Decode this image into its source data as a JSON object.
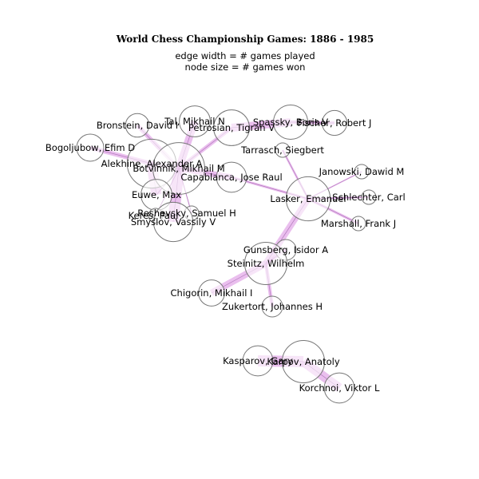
{
  "figure": {
    "title": "World Chess Championship Games: 1886 - 1985",
    "subtitle_lines": [
      "edge width = # games played",
      "node size = # games won"
    ]
  },
  "colors": {
    "edge": "#d98be0",
    "node_fill": "#ffffff",
    "node_stroke": "#777777",
    "text": "#000000"
  },
  "nodes": [
    {
      "id": "tal",
      "label": "Tal, Mikhail N",
      "games_won": 13
    },
    {
      "id": "bronstein",
      "label": "Bronstein, David I",
      "games_won": 6
    },
    {
      "id": "petrosian",
      "label": "Petrosian, Tigran V",
      "games_won": 19
    },
    {
      "id": "spassky",
      "label": "Spassky, Boris V",
      "games_won": 17
    },
    {
      "id": "fischer",
      "label": "Fischer, Robert J",
      "games_won": 7
    },
    {
      "id": "bogoljubow",
      "label": "Bogoljubow, Efim D",
      "games_won": 9
    },
    {
      "id": "tarrasch",
      "label": "Tarrasch, Siegbert",
      "games_won": 1
    },
    {
      "id": "alekhine",
      "label": "Alekhine, Alexander A",
      "games_won": 41
    },
    {
      "id": "botvinnik",
      "label": "Botvinnik, Mikhail M",
      "games_won": 47
    },
    {
      "id": "capablanca",
      "label": "Capablanca, Jose Raul",
      "games_won": 12
    },
    {
      "id": "janowski",
      "label": "Janowski, Dawid M",
      "games_won": 1
    },
    {
      "id": "euwe",
      "label": "Euwe, Max",
      "games_won": 13
    },
    {
      "id": "lasker",
      "label": "Lasker, Emanuel",
      "games_won": 32
    },
    {
      "id": "schlechter",
      "label": "Schlechter, Carl",
      "games_won": 1
    },
    {
      "id": "reshevsky",
      "label": "Reshevsky, Samuel H",
      "games_won": 1
    },
    {
      "id": "keres",
      "label": "Keres, Paul",
      "games_won": 1
    },
    {
      "id": "smyslov",
      "label": "Smyslov, Vassily V",
      "games_won": 24
    },
    {
      "id": "marshall",
      "label": "Marshall, Frank J",
      "games_won": 1
    },
    {
      "id": "gunsberg",
      "label": "Gunsberg, Isidor A",
      "games_won": 4
    },
    {
      "id": "steinitz",
      "label": "Steinitz, Wilhelm",
      "games_won": 29
    },
    {
      "id": "chigorin",
      "label": "Chigorin, Mikhail I",
      "games_won": 8
    },
    {
      "id": "zukertort",
      "label": "Zukertort, Johannes H",
      "games_won": 4
    },
    {
      "id": "kasparov",
      "label": "Kasparov, Gary",
      "games_won": 12
    },
    {
      "id": "karpov",
      "label": "Karpov, Anatoly",
      "games_won": 29
    },
    {
      "id": "korchnoi",
      "label": "Korchnoi, Viktor L",
      "games_won": 12
    }
  ],
  "edges": [
    {
      "source": "tal",
      "target": "botvinnik",
      "games": 42
    },
    {
      "source": "bronstein",
      "target": "botvinnik",
      "games": 24
    },
    {
      "source": "petrosian",
      "target": "botvinnik",
      "games": 22
    },
    {
      "source": "petrosian",
      "target": "spassky",
      "games": 46
    },
    {
      "source": "spassky",
      "target": "fischer",
      "games": 21
    },
    {
      "source": "bogoljubow",
      "target": "alekhine",
      "games": 25
    },
    {
      "source": "alekhine",
      "target": "capablanca",
      "games": 34
    },
    {
      "source": "alekhine",
      "target": "euwe",
      "games": 60
    },
    {
      "source": "botvinnik",
      "target": "smyslov",
      "games": 69
    },
    {
      "source": "botvinnik",
      "target": "euwe",
      "games": 5
    },
    {
      "source": "botvinnik",
      "target": "keres",
      "games": 5
    },
    {
      "source": "botvinnik",
      "target": "reshevsky",
      "games": 5
    },
    {
      "source": "capablanca",
      "target": "lasker",
      "games": 14
    },
    {
      "source": "lasker",
      "target": "tarrasch",
      "games": 12
    },
    {
      "source": "lasker",
      "target": "janowski",
      "games": 8
    },
    {
      "source": "lasker",
      "target": "schlechter",
      "games": 10
    },
    {
      "source": "lasker",
      "target": "marshall",
      "games": 15
    },
    {
      "source": "lasker",
      "target": "steinitz",
      "games": 37
    },
    {
      "source": "steinitz",
      "target": "gunsberg",
      "games": 19
    },
    {
      "source": "steinitz",
      "target": "chigorin",
      "games": 39
    },
    {
      "source": "steinitz",
      "target": "zukertort",
      "games": 20
    },
    {
      "source": "kasparov",
      "target": "karpov",
      "games": 72
    },
    {
      "source": "karpov",
      "target": "korchnoi",
      "games": 53
    }
  ]
}
